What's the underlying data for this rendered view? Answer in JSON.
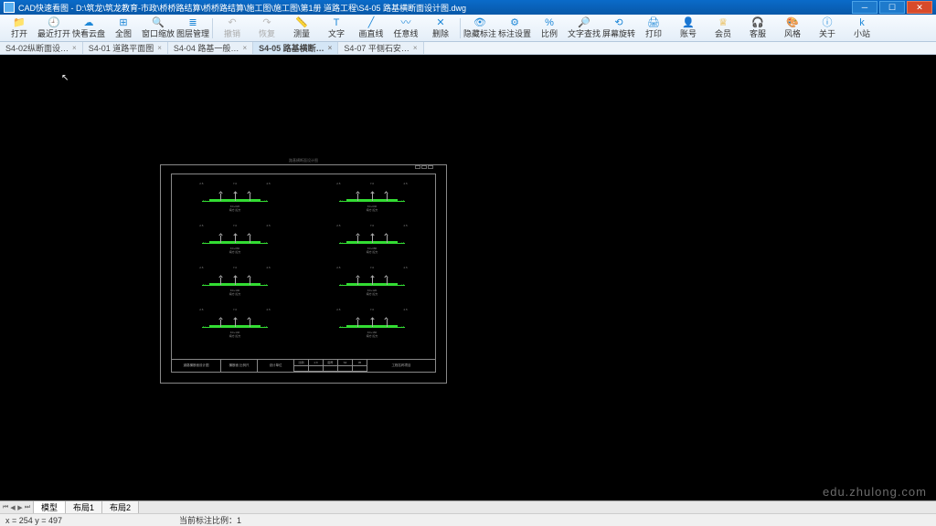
{
  "window": {
    "title": "CAD快速看图 - D:\\筑龙\\筑龙教育-市政\\桥桥路结算\\桥桥路结算\\施工图\\施工图\\第1册 道路工程\\S4-05 路基横断面设计图.dwg"
  },
  "toolbar": [
    {
      "name": "open",
      "label": "打开",
      "color": "#1e88d8",
      "glyph": "📁"
    },
    {
      "name": "recent",
      "label": "最近打开",
      "color": "#1e88d8",
      "glyph": "🕘"
    },
    {
      "name": "cloud",
      "label": "快看云盘",
      "color": "#1e88d8",
      "glyph": "☁"
    },
    {
      "name": "full",
      "label": "全图",
      "color": "#1e88d8",
      "glyph": "⊞"
    },
    {
      "name": "zoomwin",
      "label": "窗口缩放",
      "color": "#1e88d8",
      "glyph": "🔍"
    },
    {
      "name": "layers",
      "label": "图层管理",
      "color": "#1e88d8",
      "glyph": "≣"
    },
    {
      "name": "sep1",
      "sep": true
    },
    {
      "name": "undo",
      "label": "撤销",
      "color": "#bbb",
      "glyph": "↶",
      "disabled": true
    },
    {
      "name": "redo",
      "label": "恢复",
      "color": "#bbb",
      "glyph": "↷",
      "disabled": true
    },
    {
      "name": "measure",
      "label": "测量",
      "color": "#1e88d8",
      "glyph": "📏"
    },
    {
      "name": "text",
      "label": "文字",
      "color": "#1e88d8",
      "glyph": "T"
    },
    {
      "name": "line",
      "label": "画直线",
      "color": "#1e88d8",
      "glyph": "╱"
    },
    {
      "name": "freeline",
      "label": "任意线",
      "color": "#1e88d8",
      "glyph": "〰"
    },
    {
      "name": "delete",
      "label": "删除",
      "color": "#1e88d8",
      "glyph": "✕"
    },
    {
      "name": "sep2",
      "sep": true
    },
    {
      "name": "hidedim",
      "label": "隐藏标注",
      "color": "#1e88d8",
      "glyph": "👁"
    },
    {
      "name": "dimset",
      "label": "标注设置",
      "color": "#1e88d8",
      "glyph": "⚙"
    },
    {
      "name": "scale",
      "label": "比例",
      "color": "#1e88d8",
      "glyph": "%"
    },
    {
      "name": "findtext",
      "label": "文字查找",
      "color": "#1e88d8",
      "glyph": "🔎"
    },
    {
      "name": "rotate",
      "label": "屏幕旋转",
      "color": "#1e88d8",
      "glyph": "⟲"
    },
    {
      "name": "print",
      "label": "打印",
      "color": "#1e88d8",
      "glyph": "🖨"
    },
    {
      "name": "account",
      "label": "账号",
      "color": "#1e88d8",
      "glyph": "👤"
    },
    {
      "name": "vip",
      "label": "会员",
      "color": "#e8a000",
      "glyph": "♕"
    },
    {
      "name": "service",
      "label": "客服",
      "color": "#1e88d8",
      "glyph": "🎧"
    },
    {
      "name": "style",
      "label": "风格",
      "color": "#1e88d8",
      "glyph": "🎨"
    },
    {
      "name": "about",
      "label": "关于",
      "color": "#1e88d8",
      "glyph": "ⓘ"
    },
    {
      "name": "helper",
      "label": "小站",
      "color": "#1e88d8",
      "glyph": "k"
    }
  ],
  "tabs": [
    {
      "label": "S4-02纵断面设…",
      "active": false
    },
    {
      "label": "S4-01 道路平面图",
      "active": false
    },
    {
      "label": "S4-04 路基一般…",
      "active": false
    },
    {
      "label": "S4-05 路基横断…",
      "active": true
    },
    {
      "label": "S4-07 平侧石安…",
      "active": false
    }
  ],
  "drawing": {
    "sheet_title": "路基横断面设计图",
    "sections": [
      {
        "sta": "K0+020",
        "fill": "填方",
        "cut": "挖方"
      },
      {
        "sta": "K0+040",
        "fill": "填方",
        "cut": "挖方"
      },
      {
        "sta": "K0+060",
        "fill": "填方",
        "cut": "挖方"
      },
      {
        "sta": "K0+080",
        "fill": "填方",
        "cut": "挖方"
      },
      {
        "sta": "K0+100",
        "fill": "填方",
        "cut": "挖方"
      },
      {
        "sta": "K0+120",
        "fill": "填方",
        "cut": "挖方"
      },
      {
        "sta": "K0+140",
        "fill": "填方",
        "cut": "挖方"
      },
      {
        "sta": "K0+160",
        "fill": "填方",
        "cut": "挖方"
      }
    ],
    "titleblock": {
      "c1": "道路横断面设计图",
      "c2": "横断面 比例尺",
      "c3": "设计单位",
      "g": [
        "比例",
        "1:X",
        "图号",
        "S4",
        "05",
        "",
        "",
        "",
        "",
        ""
      ],
      "c4": "工程名称项目"
    },
    "colors": {
      "line": "#33dd33",
      "frame": "#888888",
      "bg": "#000000"
    }
  },
  "bottom_tabs": [
    {
      "label": "模型",
      "active": true
    },
    {
      "label": "布局1",
      "active": false
    },
    {
      "label": "布局2",
      "active": false
    }
  ],
  "status": {
    "coords": "x = 254  y = 497",
    "scale": "当前标注比例：1"
  },
  "watermark": "edu.zhulong.com"
}
